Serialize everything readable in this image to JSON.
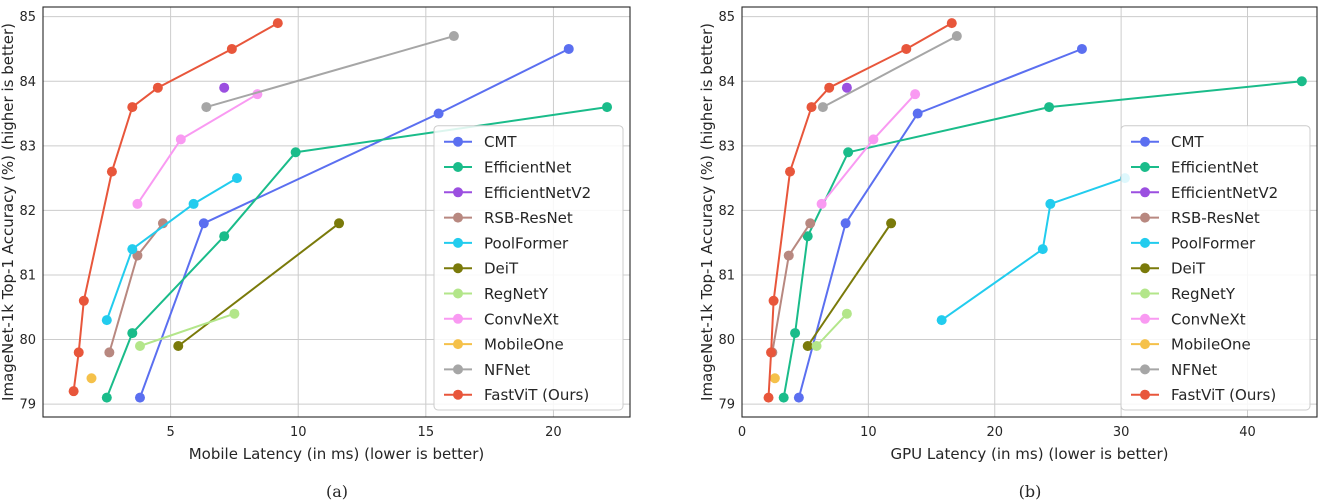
{
  "panels": [
    {
      "caption": "(a)",
      "chart_data": {
        "type": "line",
        "xlabel": "Mobile Latency (in ms) (lower is better)",
        "ylabel": "ImageNet-1k Top-1 Accuracy (%) (higher is better)",
        "xlim": [
          0,
          23
        ],
        "ylim": [
          78.8,
          85.15
        ],
        "xticks": [
          5,
          10,
          15,
          20
        ],
        "yticks": [
          79,
          80,
          81,
          82,
          83,
          84,
          85
        ],
        "grid": true,
        "legend_position": "lower-right",
        "series": [
          {
            "name": "CMT",
            "color": "#5b6ff0",
            "points": [
              [
                3.8,
                79.1
              ],
              [
                6.3,
                81.8
              ],
              [
                15.5,
                83.5
              ],
              [
                20.6,
                84.5
              ]
            ]
          },
          {
            "name": "EfficientNet",
            "color": "#1abc8a",
            "points": [
              [
                2.5,
                79.1
              ],
              [
                3.5,
                80.1
              ],
              [
                7.1,
                81.6
              ],
              [
                9.9,
                82.9
              ],
              [
                22.1,
                83.6
              ]
            ]
          },
          {
            "name": "EfficientNetV2",
            "color": "#9b4fe0",
            "points": [
              [
                7.1,
                83.9
              ]
            ]
          },
          {
            "name": "RSB-ResNet",
            "color": "#b88880",
            "points": [
              [
                2.6,
                79.8
              ],
              [
                3.7,
                81.3
              ],
              [
                4.7,
                81.8
              ]
            ]
          },
          {
            "name": "PoolFormer",
            "color": "#22ccee",
            "points": [
              [
                2.5,
                80.3
              ],
              [
                3.5,
                81.4
              ],
              [
                5.9,
                82.1
              ],
              [
                7.6,
                82.5
              ]
            ]
          },
          {
            "name": "DeiT",
            "color": "#7a7a0a",
            "points": [
              [
                5.3,
                79.9
              ],
              [
                11.6,
                81.8
              ]
            ]
          },
          {
            "name": "RegNetY",
            "color": "#b3e68a",
            "points": [
              [
                3.8,
                79.9
              ],
              [
                7.5,
                80.4
              ]
            ]
          },
          {
            "name": "ConvNeXt",
            "color": "#f99af2",
            "points": [
              [
                3.7,
                82.1
              ],
              [
                5.4,
                83.1
              ],
              [
                8.4,
                83.8
              ]
            ]
          },
          {
            "name": "MobileOne",
            "color": "#f5c14a",
            "points": [
              [
                1.9,
                79.4
              ]
            ]
          },
          {
            "name": "NFNet",
            "color": "#a6a6a6",
            "points": [
              [
                6.4,
                83.6
              ],
              [
                16.1,
                84.7
              ]
            ]
          },
          {
            "name": "FastViT (Ours)",
            "color": "#e8563b",
            "points": [
              [
                1.2,
                79.2
              ],
              [
                1.4,
                79.8
              ],
              [
                1.6,
                80.6
              ],
              [
                2.7,
                82.6
              ],
              [
                3.5,
                83.6
              ],
              [
                4.5,
                83.9
              ],
              [
                7.4,
                84.5
              ],
              [
                9.2,
                84.9
              ]
            ]
          }
        ]
      }
    },
    {
      "caption": "(b)",
      "chart_data": {
        "type": "line",
        "xlabel": "GPU Latency (in ms) (lower is better)",
        "ylabel": "ImageNet-1k Top-1 Accuracy (%) (higher is better)",
        "xlim": [
          0,
          45.5
        ],
        "ylim": [
          78.8,
          85.15
        ],
        "xticks": [
          0,
          10,
          20,
          30,
          40
        ],
        "yticks": [
          79,
          80,
          81,
          82,
          83,
          84,
          85
        ],
        "grid": true,
        "legend_position": "lower-right",
        "series": [
          {
            "name": "CMT",
            "color": "#5b6ff0",
            "points": [
              [
                4.5,
                79.1
              ],
              [
                8.2,
                81.8
              ],
              [
                13.9,
                83.5
              ],
              [
                26.9,
                84.5
              ]
            ]
          },
          {
            "name": "EfficientNet",
            "color": "#1abc8a",
            "points": [
              [
                3.3,
                79.1
              ],
              [
                4.2,
                80.1
              ],
              [
                5.2,
                81.6
              ],
              [
                8.4,
                82.9
              ],
              [
                24.3,
                83.6
              ],
              [
                44.3,
                84.0
              ]
            ]
          },
          {
            "name": "EfficientNetV2",
            "color": "#9b4fe0",
            "points": [
              [
                8.3,
                83.9
              ]
            ]
          },
          {
            "name": "RSB-ResNet",
            "color": "#b88880",
            "points": [
              [
                2.4,
                79.8
              ],
              [
                3.7,
                81.3
              ],
              [
                5.4,
                81.8
              ]
            ]
          },
          {
            "name": "PoolFormer",
            "color": "#22ccee",
            "points": [
              [
                15.8,
                80.3
              ],
              [
                23.8,
                81.4
              ],
              [
                24.4,
                82.1
              ],
              [
                30.3,
                82.5
              ]
            ]
          },
          {
            "name": "DeiT",
            "color": "#7a7a0a",
            "points": [
              [
                5.2,
                79.9
              ],
              [
                11.8,
                81.8
              ]
            ]
          },
          {
            "name": "RegNetY",
            "color": "#b3e68a",
            "points": [
              [
                5.9,
                79.9
              ],
              [
                8.3,
                80.4
              ]
            ]
          },
          {
            "name": "ConvNeXt",
            "color": "#f99af2",
            "points": [
              [
                6.3,
                82.1
              ],
              [
                10.4,
                83.1
              ],
              [
                13.7,
                83.8
              ]
            ]
          },
          {
            "name": "MobileOne",
            "color": "#f5c14a",
            "points": [
              [
                2.6,
                79.4
              ]
            ]
          },
          {
            "name": "NFNet",
            "color": "#a6a6a6",
            "points": [
              [
                6.4,
                83.6
              ],
              [
                17.0,
                84.7
              ]
            ]
          },
          {
            "name": "FastViT (Ours)",
            "color": "#e8563b",
            "points": [
              [
                2.1,
                79.1
              ],
              [
                2.3,
                79.8
              ],
              [
                2.5,
                80.6
              ],
              [
                3.8,
                82.6
              ],
              [
                5.5,
                83.6
              ],
              [
                6.9,
                83.9
              ],
              [
                13.0,
                84.5
              ],
              [
                16.6,
                84.9
              ]
            ]
          }
        ]
      }
    }
  ]
}
